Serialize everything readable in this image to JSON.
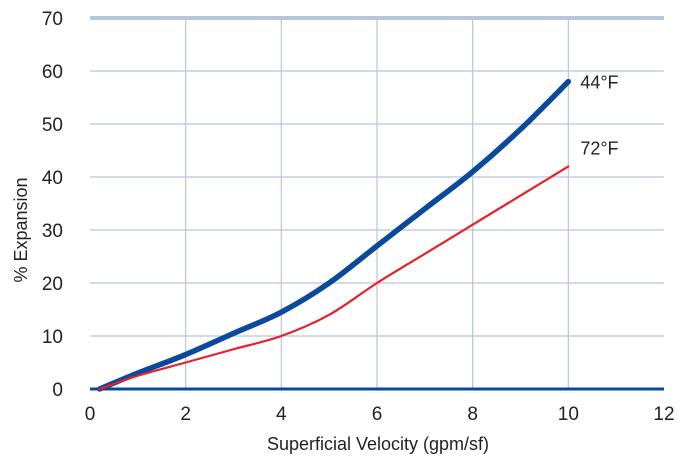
{
  "chart_data": {
    "type": "line",
    "xlabel": "Superficial Velocity (gpm/sf)",
    "ylabel": "% Expansion",
    "xlim": [
      0,
      12
    ],
    "ylim": [
      0,
      70
    ],
    "x_ticks": [
      "0",
      "2",
      "4",
      "6",
      "8",
      "10",
      "12"
    ],
    "y_ticks": [
      "0",
      "10",
      "20",
      "30",
      "40",
      "50",
      "60",
      "70"
    ],
    "grid": true,
    "series": [
      {
        "name": "44°F",
        "color": "#0b4a9a",
        "x": [
          0.2,
          1,
          2,
          3,
          4,
          5,
          6,
          7,
          8,
          9,
          10
        ],
        "y": [
          0,
          3,
          6.5,
          10.5,
          14.5,
          20,
          27,
          34,
          41,
          49,
          58
        ]
      },
      {
        "name": "72°F",
        "color": "#e8202a",
        "x": [
          0.2,
          1,
          2,
          3,
          4,
          5,
          6,
          7,
          8,
          9,
          10
        ],
        "y": [
          0,
          2.5,
          5,
          7.5,
          10,
          14,
          20,
          25.5,
          31,
          36.5,
          42
        ]
      }
    ]
  }
}
